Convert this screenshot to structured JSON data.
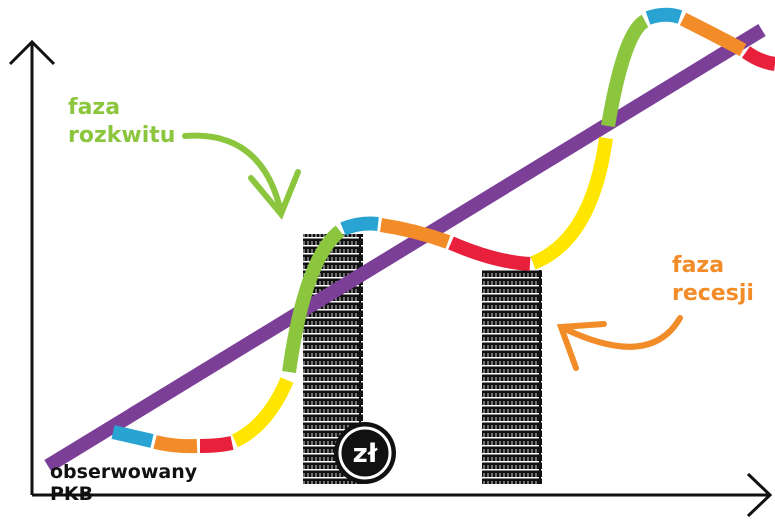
{
  "phase_boom": {
    "line1": "faza",
    "line2": "rozkwitu"
  },
  "phase_recession": {
    "line1": "faza",
    "line2": "recesji"
  },
  "axis_label": {
    "line1": "obserwowany",
    "line2": "PKB"
  },
  "currency": "zł"
}
